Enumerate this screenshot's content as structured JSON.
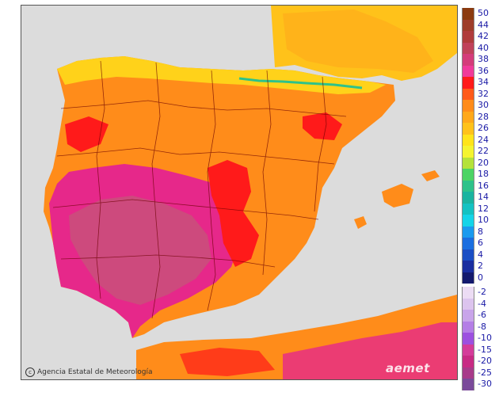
{
  "credit": {
    "icon": "copyright-icon",
    "text": "Agencia Estatal de Meteorología"
  },
  "logo": {
    "text": "aemet"
  },
  "colors": {
    "sea": "#dcdcdc",
    "land_base": "#ff8c1a",
    "north_yellow": "#ffd21a",
    "red": "#ff1a1a",
    "magenta": "#e6288a",
    "mauve": "#c8507a",
    "coast_green": "#2ec27a",
    "border_line": "#6b0000"
  },
  "legend": {
    "warm": [
      {
        "label": "50",
        "color": "#8b3a0f"
      },
      {
        "label": "44",
        "color": "#9e3d2a"
      },
      {
        "label": "42",
        "color": "#b03c3c"
      },
      {
        "label": "40",
        "color": "#c0425a"
      },
      {
        "label": "38",
        "color": "#d43c7a"
      },
      {
        "label": "36",
        "color": "#f03a9a"
      },
      {
        "label": "34",
        "color": "#ff1a1a"
      },
      {
        "label": "32",
        "color": "#ff5a1a"
      },
      {
        "label": "30",
        "color": "#ff8c1a"
      },
      {
        "label": "28",
        "color": "#ffa81a"
      },
      {
        "label": "26",
        "color": "#ffc21a"
      },
      {
        "label": "24",
        "color": "#ffe41a"
      },
      {
        "label": "22",
        "color": "#f4f430"
      },
      {
        "label": "20",
        "color": "#b4e23a"
      },
      {
        "label": "18",
        "color": "#4cd464"
      },
      {
        "label": "16",
        "color": "#2ec28a"
      },
      {
        "label": "14",
        "color": "#1ab4a0"
      },
      {
        "label": "12",
        "color": "#14c2c2"
      },
      {
        "label": "10",
        "color": "#14d4e8"
      },
      {
        "label": "8",
        "color": "#1a9aee"
      },
      {
        "label": "6",
        "color": "#1a6ee0"
      },
      {
        "label": "4",
        "color": "#1a4ec4"
      },
      {
        "label": "2",
        "color": "#1a2ea0"
      },
      {
        "label": "0",
        "color": "#141a6e"
      }
    ],
    "cold": [
      {
        "label": "-2",
        "color": "#ecdcf4"
      },
      {
        "label": "-4",
        "color": "#dcc4ee"
      },
      {
        "label": "-6",
        "color": "#c8a4ea"
      },
      {
        "label": "-8",
        "color": "#b47ee6"
      },
      {
        "label": "-10",
        "color": "#9c50e0"
      },
      {
        "label": "-15",
        "color": "#d43c9a"
      },
      {
        "label": "-20",
        "color": "#c82a84"
      },
      {
        "label": "-25",
        "color": "#a83a8a"
      },
      {
        "label": "-30",
        "color": "#7a4a9a"
      }
    ]
  }
}
